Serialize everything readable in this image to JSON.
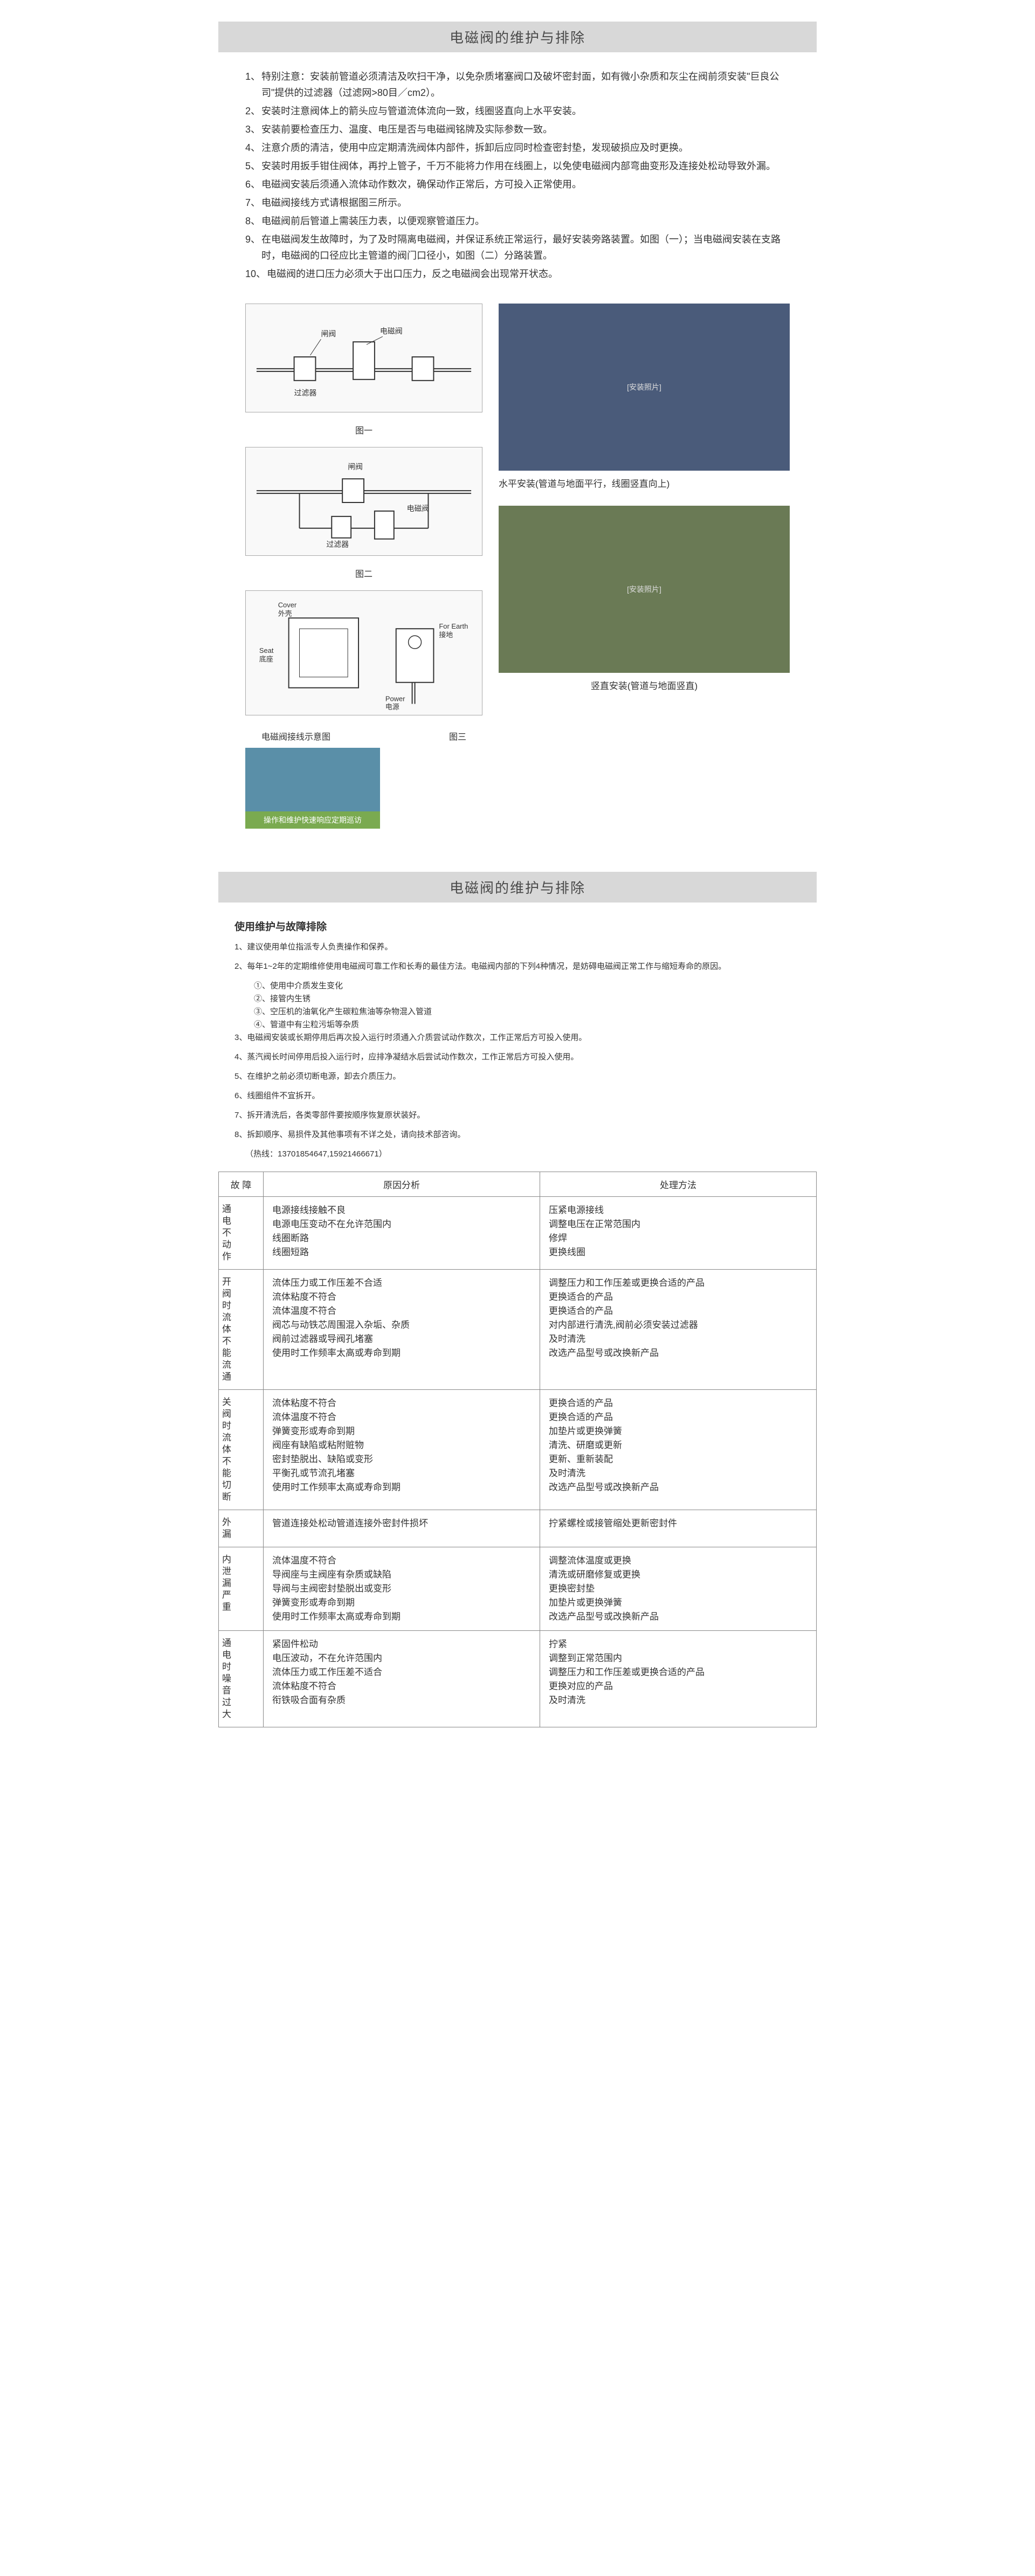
{
  "section1": {
    "title": "电磁阀的维护与排除",
    "instructions": [
      {
        "n": "1、",
        "t": "特别注意：安装前管道必须清洁及吹扫干净，以免杂质堵塞阀口及破坏密封面，如有微小杂质和灰尘在阀前须安装\"巨良公司\"提供的过滤器（过滤网>80目／cm2）。"
      },
      {
        "n": "2、",
        "t": "安装时注意阀体上的箭头应与管道流体流向一致，线圈竖直向上水平安装。"
      },
      {
        "n": "3、",
        "t": "安装前要检查压力、温度、电压是否与电磁阀铭牌及实际参数一致。"
      },
      {
        "n": "4、",
        "t": "注意介质的清洁，使用中应定期清洗阀体内部件，拆卸后应同时检查密封垫，发现破损应及时更换。"
      },
      {
        "n": "5、",
        "t": "安装时用扳手钳住阀体，再拧上管子，千万不能将力作用在线圈上，以免使电磁阀内部弯曲变形及连接处松动导致外漏。"
      },
      {
        "n": "6、",
        "t": "电磁阀安装后须通入流体动作数次，确保动作正常后，方可投入正常使用。"
      },
      {
        "n": "7、",
        "t": "电磁阀接线方式请根据图三所示。"
      },
      {
        "n": "8、",
        "t": "电磁阀前后管道上需装压力表，以便观察管道压力。"
      },
      {
        "n": "9、",
        "t": "在电磁阀发生故障时，为了及时隔离电磁阀，并保证系统正常运行，最好安装旁路装置。如图（一）；当电磁阀安装在支路时，电磁阀的口径应比主管道的阀门口径小，如图（二）分路装置。"
      },
      {
        "n": "10、",
        "t": "电磁阀的进口压力必须大于出口压力，反之电磁阀会出现常开状态。"
      }
    ],
    "diagram1": {
      "labels": {
        "top1": "闸阀",
        "top2": "电磁阀",
        "left": "过滤器",
        "bottom": "图一"
      }
    },
    "diagram2": {
      "labels": {
        "top": "闸阀",
        "mid": "过滤器",
        "right": "电磁阀",
        "bottom": "图二"
      }
    },
    "diagram3": {
      "labels": {
        "cover": "Cover",
        "cover_cn": "外壳",
        "seat": "Seat",
        "seat_cn": "底座",
        "earth": "For Earth",
        "earth_cn": "接地",
        "power": "Power",
        "power_cn": "电源",
        "caption_left": "电磁阀接线示意图",
        "caption_right": "图三"
      }
    },
    "photo1_caption": "水平安装(管道与地面平行，线圈竖直向上)",
    "photo2_caption": "竖直安装(管道与地面竖直)",
    "worker_caption": "操作和维护快速响应定期巡访"
  },
  "section2": {
    "title": "电磁阀的维护与排除",
    "subtitle": "使用维护与故障排除",
    "maintenance": [
      {
        "n": "1、",
        "t": "建议使用单位指派专人负责操作和保养。"
      },
      {
        "n": "2、",
        "t": "每年1~2年的定期维修使用电磁阀可靠工作和长寿的最佳方法。电磁阀内部的下列4种情况，是妨碍电磁​阀正常工作与缩短寿命的原因。",
        "subs": [
          "①、使用中介质发生变化",
          "②、接管内生锈",
          "③、空压机的油氧化产生碳粒焦油等杂物混入管道",
          "④、管道中有尘粒污垢等杂质"
        ]
      },
      {
        "n": "3、",
        "t": "电磁阀安装或长期停用后再次投入运行时须通入介质尝试动作数次，工作正常后方可投入使用。"
      },
      {
        "n": "4、",
        "t": "蒸汽阀长时间停用后投入运行时，应排净凝结水后尝试动作数次，工作正常后方可投入使用。"
      },
      {
        "n": "5、",
        "t": "在维护之前必须切断电源，卸去介质压力。"
      },
      {
        "n": "6、",
        "t": "线圈组件不宜拆开。"
      },
      {
        "n": "7、",
        "t": "拆开清洗后，各类零部件要按顺序恢复原状装好。"
      },
      {
        "n": "8、",
        "t": "拆卸顺序、易损件及其他事项有不详之处，请向技术部咨询。"
      }
    ],
    "hotline": "（热线：13701854647,15921466671）",
    "table": {
      "headers": [
        "故 障",
        "原因分析",
        "处理方法"
      ],
      "rows": [
        {
          "fault": "通电不动作",
          "cause": [
            "电源接线接触不良",
            "电源电压变动不在允许范围内",
            "线圈断路",
            "线圈短路"
          ],
          "fix": [
            "压紧电源接线",
            "调整电压在正常范围内",
            "修焊",
            "更换线圈"
          ]
        },
        {
          "fault": "开阀时流体不能流通",
          "cause": [
            "流体压力或工作压差不合适",
            "流体粘度不符合",
            "流体温度不符合",
            "阀芯与动铁芯周围混入杂垢、杂质",
            "阀前过滤器或导阀孔堵塞",
            "使用时工作频率太高或寿命到期"
          ],
          "fix": [
            "调整压力和工作压差或更换合适的产品",
            "更换适合的产品",
            "更换适合的产品",
            "对内部进行清洗,阀前必须安装过滤器",
            "及时清洗",
            "改选产品型号或改换新产品"
          ]
        },
        {
          "fault": "关阀时流体不能切断",
          "cause": [
            "流体粘度不符合",
            "流体温度不符合",
            "弹簧变形或寿命到期",
            "阀座有缺陷或粘附赃物",
            "密封垫脱出、缺陷或变形",
            "平衡孔或节流孔堵塞",
            "使用时工作频率太高或寿命到期"
          ],
          "fix": [
            "更换合适的产品",
            "更换合适的产品",
            "加垫片或更换弹簧",
            "清洗、研磨或更新",
            "更新、重新装配",
            "及时清洗",
            "改选产品型号或改换新产品"
          ]
        },
        {
          "fault": "外漏",
          "cause": [
            "管道连接处松动管道连接外密封件损坏"
          ],
          "fix": [
            "拧紧螺栓或接管缩处更新密封件"
          ]
        },
        {
          "fault": "内泄漏严重",
          "cause": [
            "流体温度不符合",
            "导阀座与主阀座有杂质或缺陷",
            "导阀与主阀密封垫脱出或变形",
            "弹簧变形或寿命到期",
            "使用时工作频率太高或寿命到期"
          ],
          "fix": [
            "调整流体温度或更换",
            "清洗或研磨修复或更换",
            "更换密封垫",
            "加垫片或更换弹簧",
            "改选产品型号或改换新产品"
          ]
        },
        {
          "fault": "通电时噪音过大",
          "cause": [
            "紧固件松动",
            "电压波动，不在允许范围内",
            "流体压力或工作压差不适合",
            "流体粘度不符合",
            "衔铁吸合面有杂质"
          ],
          "fix": [
            "拧紧",
            "调整到正常范围内",
            "调整压力和工作压差或更换合适的产品",
            "更换对应的产品",
            "及时清洗"
          ]
        }
      ]
    }
  }
}
